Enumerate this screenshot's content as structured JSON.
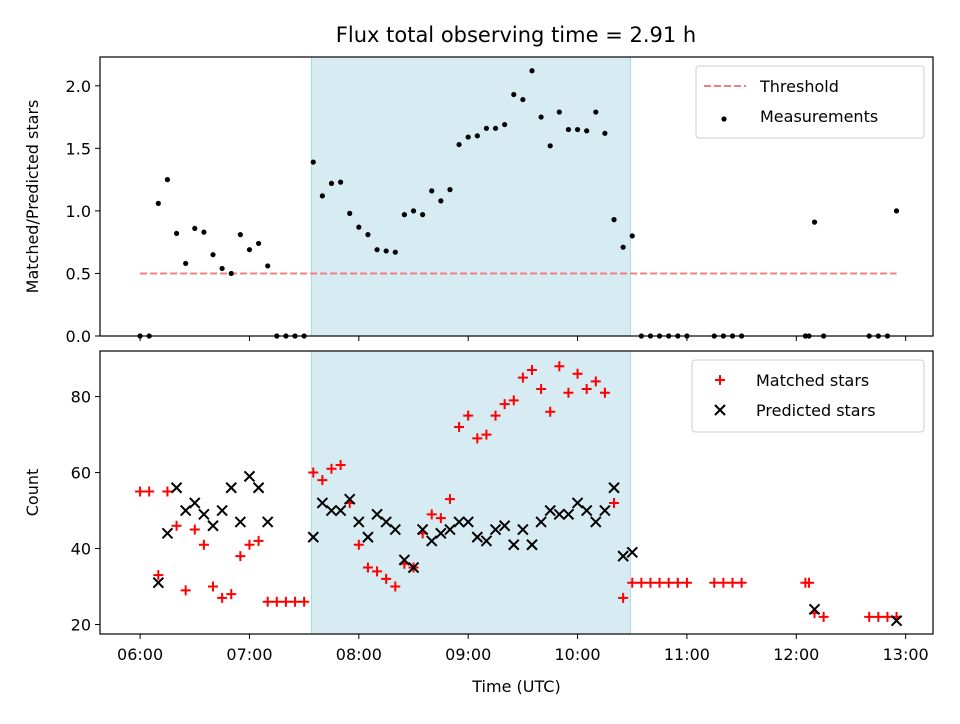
{
  "chart_data": [
    {
      "type": "scatter",
      "title": "Flux total observing time = 2.91 h",
      "ylabel": "Matched/Predicted stars",
      "xlim": [
        "05:38",
        "13:15"
      ],
      "ylim": [
        0,
        2.23
      ],
      "xticks": [
        "06:00",
        "07:00",
        "08:00",
        "09:00",
        "10:00",
        "11:00",
        "12:00",
        "13:00"
      ],
      "yticks": [
        0.0,
        0.5,
        1.0,
        1.5,
        2.0
      ],
      "ytick_labels": [
        "0.0",
        "0.5",
        "1.0",
        "1.5",
        "2.0"
      ],
      "legend_position": "top-right",
      "shaded_span": {
        "start": "07:34",
        "end": "10:29",
        "color": "#add8e6"
      },
      "threshold": {
        "name": "Threshold",
        "value": 0.5,
        "x_start": "06:00",
        "x_end": "12:55",
        "color": "#f08080"
      },
      "series": [
        {
          "name": "Measurements",
          "color": "#000000",
          "points": [
            [
              "06:00",
              0
            ],
            [
              "06:05",
              0
            ],
            [
              "06:10",
              1.06
            ],
            [
              "06:15",
              1.25
            ],
            [
              "06:20",
              0.82
            ],
            [
              "06:25",
              0.58
            ],
            [
              "06:30",
              0.86
            ],
            [
              "06:35",
              0.83
            ],
            [
              "06:40",
              0.65
            ],
            [
              "06:45",
              0.54
            ],
            [
              "06:50",
              0.5
            ],
            [
              "06:55",
              0.81
            ],
            [
              "07:00",
              0.69
            ],
            [
              "07:05",
              0.74
            ],
            [
              "07:10",
              0.56
            ],
            [
              "07:15",
              0
            ],
            [
              "07:20",
              0
            ],
            [
              "07:25",
              0
            ],
            [
              "07:30",
              0
            ],
            [
              "07:35",
              1.39
            ],
            [
              "07:40",
              1.12
            ],
            [
              "07:45",
              1.22
            ],
            [
              "07:50",
              1.23
            ],
            [
              "07:55",
              0.98
            ],
            [
              "08:00",
              0.87
            ],
            [
              "08:05",
              0.81
            ],
            [
              "08:10",
              0.69
            ],
            [
              "08:15",
              0.68
            ],
            [
              "08:20",
              0.67
            ],
            [
              "08:25",
              0.97
            ],
            [
              "08:30",
              1.0
            ],
            [
              "08:35",
              0.97
            ],
            [
              "08:40",
              1.16
            ],
            [
              "08:45",
              1.08
            ],
            [
              "08:50",
              1.17
            ],
            [
              "08:55",
              1.53
            ],
            [
              "09:00",
              1.59
            ],
            [
              "09:05",
              1.6
            ],
            [
              "09:10",
              1.66
            ],
            [
              "09:15",
              1.66
            ],
            [
              "09:20",
              1.69
            ],
            [
              "09:25",
              1.93
            ],
            [
              "09:30",
              1.89
            ],
            [
              "09:35",
              2.12
            ],
            [
              "09:40",
              1.75
            ],
            [
              "09:45",
              1.52
            ],
            [
              "09:50",
              1.79
            ],
            [
              "09:55",
              1.65
            ],
            [
              "10:00",
              1.65
            ],
            [
              "10:05",
              1.64
            ],
            [
              "10:10",
              1.79
            ],
            [
              "10:15",
              1.62
            ],
            [
              "10:20",
              0.93
            ],
            [
              "10:25",
              0.71
            ],
            [
              "10:30",
              0.8
            ],
            [
              "10:35",
              0
            ],
            [
              "10:40",
              0
            ],
            [
              "10:45",
              0
            ],
            [
              "10:50",
              0
            ],
            [
              "10:55",
              0
            ],
            [
              "11:00",
              0
            ],
            [
              "11:15",
              0
            ],
            [
              "11:20",
              0
            ],
            [
              "11:25",
              0
            ],
            [
              "11:30",
              0
            ],
            [
              "12:05",
              0
            ],
            [
              "12:07",
              0
            ],
            [
              "12:10",
              0.91
            ],
            [
              "12:15",
              0
            ],
            [
              "12:40",
              0
            ],
            [
              "12:45",
              0
            ],
            [
              "12:50",
              0
            ],
            [
              "12:55",
              1.0
            ]
          ]
        }
      ]
    },
    {
      "type": "scatter",
      "xlabel": "Time (UTC)",
      "ylabel": "Count",
      "xlim": [
        "05:38",
        "13:15"
      ],
      "ylim": [
        17.5,
        92
      ],
      "xticks": [
        "06:00",
        "07:00",
        "08:00",
        "09:00",
        "10:00",
        "11:00",
        "12:00",
        "13:00"
      ],
      "yticks": [
        20,
        40,
        60,
        80
      ],
      "ytick_labels": [
        "20",
        "40",
        "60",
        "80"
      ],
      "legend_position": "top-right",
      "shaded_span": {
        "start": "07:34",
        "end": "10:29",
        "color": "#add8e6"
      },
      "series": [
        {
          "name": "Matched stars",
          "marker": "plus",
          "color": "#ff0000",
          "points": [
            [
              "06:00",
              55
            ],
            [
              "06:05",
              55
            ],
            [
              "06:10",
              33
            ],
            [
              "06:15",
              55
            ],
            [
              "06:20",
              46
            ],
            [
              "06:25",
              29
            ],
            [
              "06:30",
              45
            ],
            [
              "06:35",
              41
            ],
            [
              "06:40",
              30
            ],
            [
              "06:45",
              27
            ],
            [
              "06:50",
              28
            ],
            [
              "06:55",
              38
            ],
            [
              "07:00",
              41
            ],
            [
              "07:05",
              42
            ],
            [
              "07:10",
              26
            ],
            [
              "07:15",
              26
            ],
            [
              "07:20",
              26
            ],
            [
              "07:25",
              26
            ],
            [
              "07:30",
              26
            ],
            [
              "07:35",
              60
            ],
            [
              "07:40",
              58
            ],
            [
              "07:45",
              61
            ],
            [
              "07:50",
              62
            ],
            [
              "07:55",
              52
            ],
            [
              "08:00",
              41
            ],
            [
              "08:05",
              35
            ],
            [
              "08:10",
              34
            ],
            [
              "08:15",
              32
            ],
            [
              "08:20",
              30
            ],
            [
              "08:25",
              36
            ],
            [
              "08:30",
              35
            ],
            [
              "08:35",
              44
            ],
            [
              "08:40",
              49
            ],
            [
              "08:45",
              48
            ],
            [
              "08:50",
              53
            ],
            [
              "08:55",
              72
            ],
            [
              "09:00",
              75
            ],
            [
              "09:05",
              69
            ],
            [
              "09:10",
              70
            ],
            [
              "09:15",
              75
            ],
            [
              "09:20",
              78
            ],
            [
              "09:25",
              79
            ],
            [
              "09:30",
              85
            ],
            [
              "09:35",
              87
            ],
            [
              "09:40",
              82
            ],
            [
              "09:45",
              76
            ],
            [
              "09:50",
              88
            ],
            [
              "09:55",
              81
            ],
            [
              "10:00",
              86
            ],
            [
              "10:05",
              82
            ],
            [
              "10:10",
              84
            ],
            [
              "10:15",
              81
            ],
            [
              "10:20",
              52
            ],
            [
              "10:25",
              27
            ],
            [
              "10:30",
              31
            ],
            [
              "10:35",
              31
            ],
            [
              "10:40",
              31
            ],
            [
              "10:45",
              31
            ],
            [
              "10:50",
              31
            ],
            [
              "10:55",
              31
            ],
            [
              "11:00",
              31
            ],
            [
              "11:15",
              31
            ],
            [
              "11:20",
              31
            ],
            [
              "11:25",
              31
            ],
            [
              "11:30",
              31
            ],
            [
              "12:05",
              31
            ],
            [
              "12:07",
              31
            ],
            [
              "12:10",
              23
            ],
            [
              "12:15",
              22
            ],
            [
              "12:40",
              22
            ],
            [
              "12:45",
              22
            ],
            [
              "12:50",
              22
            ],
            [
              "12:55",
              22
            ]
          ]
        },
        {
          "name": "Predicted stars",
          "marker": "x",
          "color": "#000000",
          "points": [
            [
              "06:10",
              31
            ],
            [
              "06:15",
              44
            ],
            [
              "06:20",
              56
            ],
            [
              "06:25",
              50
            ],
            [
              "06:30",
              52
            ],
            [
              "06:35",
              49
            ],
            [
              "06:40",
              46
            ],
            [
              "06:45",
              50
            ],
            [
              "06:50",
              56
            ],
            [
              "06:55",
              47
            ],
            [
              "07:00",
              59
            ],
            [
              "07:05",
              56
            ],
            [
              "07:10",
              47
            ],
            [
              "07:35",
              43
            ],
            [
              "07:40",
              52
            ],
            [
              "07:45",
              50
            ],
            [
              "07:50",
              50
            ],
            [
              "07:55",
              53
            ],
            [
              "08:00",
              47
            ],
            [
              "08:05",
              43
            ],
            [
              "08:10",
              49
            ],
            [
              "08:15",
              47
            ],
            [
              "08:20",
              45
            ],
            [
              "08:25",
              37
            ],
            [
              "08:30",
              35
            ],
            [
              "08:35",
              45
            ],
            [
              "08:40",
              42
            ],
            [
              "08:45",
              44
            ],
            [
              "08:50",
              45
            ],
            [
              "08:55",
              47
            ],
            [
              "09:00",
              47
            ],
            [
              "09:05",
              43
            ],
            [
              "09:10",
              42
            ],
            [
              "09:15",
              45
            ],
            [
              "09:20",
              46
            ],
            [
              "09:25",
              41
            ],
            [
              "09:30",
              45
            ],
            [
              "09:35",
              41
            ],
            [
              "09:40",
              47
            ],
            [
              "09:45",
              50
            ],
            [
              "09:50",
              49
            ],
            [
              "09:55",
              49
            ],
            [
              "10:00",
              52
            ],
            [
              "10:05",
              50
            ],
            [
              "10:10",
              47
            ],
            [
              "10:15",
              50
            ],
            [
              "10:20",
              56
            ],
            [
              "10:25",
              38
            ],
            [
              "10:30",
              39
            ],
            [
              "12:10",
              24
            ],
            [
              "12:55",
              21
            ]
          ]
        }
      ]
    }
  ]
}
